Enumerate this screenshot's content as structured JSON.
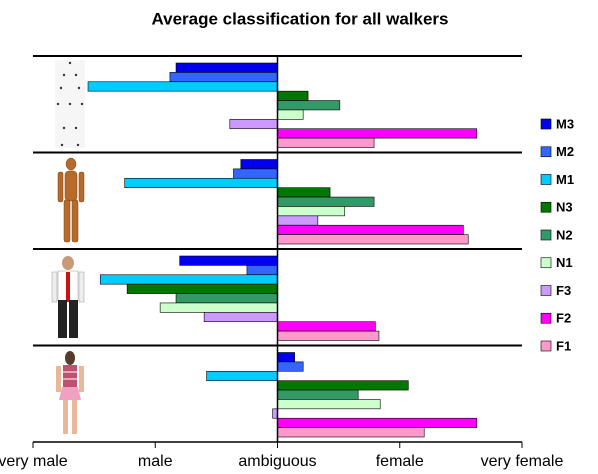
{
  "chart_data": {
    "type": "hbar",
    "title": "Average classification for all walkers",
    "xlim": [
      -2,
      2
    ],
    "xticks": [
      {
        "value": -2,
        "label": "very male"
      },
      {
        "value": -1,
        "label": "male"
      },
      {
        "value": 0,
        "label": "ambiguous"
      },
      {
        "value": 1,
        "label": "female"
      },
      {
        "value": 2,
        "label": "very female"
      }
    ],
    "legend": "right",
    "series": [
      {
        "name": "M3",
        "color": "#0000ee",
        "values": [
          -0.83,
          -0.3,
          -0.8,
          0.14
        ]
      },
      {
        "name": "M2",
        "color": "#3366ff",
        "values": [
          -0.88,
          -0.36,
          -0.25,
          0.21
        ]
      },
      {
        "name": "M1",
        "color": "#00ccff",
        "values": [
          -1.55,
          -1.25,
          -1.45,
          -0.58
        ]
      },
      {
        "name": "N3",
        "color": "#007700",
        "values": [
          0.25,
          0.43,
          -1.23,
          1.07
        ]
      },
      {
        "name": "N2",
        "color": "#339966",
        "values": [
          0.51,
          0.79,
          -0.83,
          0.66
        ]
      },
      {
        "name": "N1",
        "color": "#ccffcc",
        "values": [
          0.21,
          0.55,
          -0.96,
          0.84
        ]
      },
      {
        "name": "F3",
        "color": "#cc99ff",
        "values": [
          -0.39,
          0.33,
          -0.6,
          -0.04
        ]
      },
      {
        "name": "F2",
        "color": "#ff00ff",
        "values": [
          1.63,
          1.52,
          0.8,
          1.63
        ]
      },
      {
        "name": "F1",
        "color": "#ff99cc",
        "values": [
          0.79,
          1.56,
          0.83,
          1.2
        ]
      }
    ]
  }
}
